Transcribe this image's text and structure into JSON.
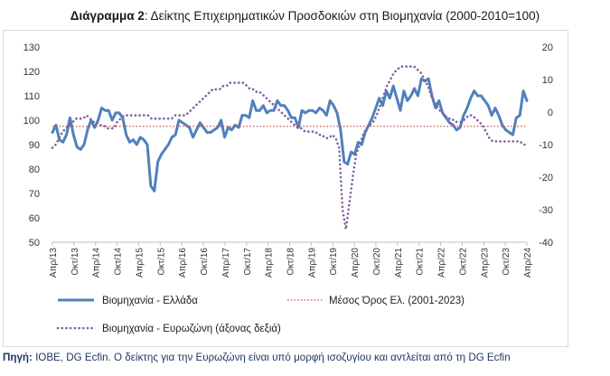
{
  "title_bold": "Διάγραμμα 2",
  "title_rest": ": Δείκτης Επιχειρηματικών Προσδοκιών στη Βιομηχανία (2000-2010=100)",
  "source_bold": "Πηγή:",
  "source_rest": " ΙΟΒΕ, DG Ecfin. Ο δείκτης για την Ευρωζώνη είναι υπό μορφή ισοζυγίου και αντλείται από τη DG Ecfin",
  "colors": {
    "greece": "#4f81bd",
    "euro": "#8064a2",
    "mean": "#c0504d"
  },
  "chart_data": {
    "type": "line",
    "x_labels": [
      "Απρ/13",
      "Οκτ/13",
      "Απρ/14",
      "Οκτ/14",
      "Απρ/15",
      "Οκτ/15",
      "Απρ/16",
      "Οκτ/16",
      "Απρ/17",
      "Οκτ/17",
      "Απρ/18",
      "Οκτ/18",
      "Απρ/19",
      "Οκτ/19",
      "Απρ/20",
      "Οκτ/20",
      "Απρ/21",
      "Οκτ/21",
      "Απρ/22",
      "Οκτ/22",
      "Απρ/23",
      "Οκτ/23",
      "Απρ/24"
    ],
    "y_left": {
      "min": 50,
      "max": 130,
      "step": 10,
      "ticks": [
        "50",
        "60",
        "70",
        "80",
        "90",
        "100",
        "110",
        "120",
        "130"
      ]
    },
    "y_right": {
      "min": -40,
      "max": 20,
      "step": 10,
      "ticks": [
        "-40",
        "-30",
        "-20",
        "-10",
        "0",
        "10",
        "20"
      ]
    },
    "series": [
      {
        "name": "Βιομηχανία - Ελλάδα",
        "axis": "left",
        "style": "solid",
        "values": [
          95,
          98,
          92,
          91,
          94,
          101,
          94,
          89,
          88,
          90,
          96,
          100,
          97,
          100,
          105,
          104,
          104,
          100,
          103,
          103,
          101,
          94,
          91,
          92,
          90,
          93,
          92,
          90,
          73,
          71,
          83,
          86,
          88,
          90,
          93,
          94,
          100,
          99,
          98,
          97,
          93,
          96,
          99,
          97,
          95,
          95,
          96,
          97,
          100,
          93,
          97,
          96,
          98,
          97,
          102,
          102,
          101,
          108,
          104,
          104,
          106,
          103,
          104,
          104,
          108,
          106,
          106,
          104,
          101,
          101,
          97,
          104,
          103,
          104,
          104,
          103,
          105,
          104,
          102,
          108,
          106,
          103,
          96,
          83,
          82,
          87,
          86,
          91,
          90,
          95,
          98,
          101,
          105,
          109,
          106,
          112,
          109,
          114,
          109,
          104,
          112,
          108,
          110,
          113,
          110,
          117,
          116,
          117,
          110,
          105,
          108,
          103,
          101,
          99,
          98,
          96,
          97,
          102,
          105,
          109,
          112,
          110,
          110,
          108,
          106,
          102,
          105,
          102,
          98,
          96,
          95,
          94,
          101,
          102,
          112,
          108
        ]
      },
      {
        "name": "Βιομηχανία - Ευρωζώνη (άξονας δεξιά)",
        "axis": "right",
        "style": "dotted",
        "values": [
          -11,
          -10,
          -8,
          -6,
          -5,
          -4,
          -3,
          -2,
          -2,
          -2,
          -1,
          -2,
          -3,
          -3,
          -4,
          -4,
          -5,
          -5,
          -5,
          -3,
          -2,
          -1,
          -1,
          -1,
          -1,
          -1,
          -1,
          -1,
          -1,
          -2,
          -2,
          -2,
          -2,
          -2,
          -2,
          -2,
          -1,
          -1,
          -1,
          -1,
          0,
          1,
          2,
          3,
          4,
          5,
          6,
          7,
          7,
          7,
          8,
          8,
          9,
          9,
          9,
          9,
          9,
          8,
          7,
          7,
          6,
          6,
          5,
          4,
          3,
          2,
          1,
          0,
          -1,
          -2,
          -3,
          -4,
          -5,
          -5,
          -6,
          -6,
          -6,
          -6,
          -7,
          -7,
          -8,
          -8,
          -7,
          -8,
          -11,
          -30,
          -36,
          -28,
          -20,
          -13,
          -10,
          -7,
          -5,
          -4,
          -3,
          -1,
          2,
          5,
          8,
          10,
          12,
          13,
          14,
          14,
          14,
          14,
          14,
          13,
          12,
          10,
          8,
          5,
          3,
          1,
          0,
          -1,
          -2,
          -2,
          -3,
          -3,
          -3,
          -2,
          -1,
          -1,
          -2,
          -3,
          -4,
          -6,
          -8,
          -9,
          -9,
          -9,
          -9,
          -9,
          -9,
          -9,
          -9,
          -9,
          -10,
          -10
        ]
      },
      {
        "name": "Μέσος Όρος Ελ. (2001-2023)",
        "axis": "left",
        "style": "dotted-thin",
        "constant": 97.5
      }
    ],
    "legend_position": "bottom",
    "grid": false
  }
}
